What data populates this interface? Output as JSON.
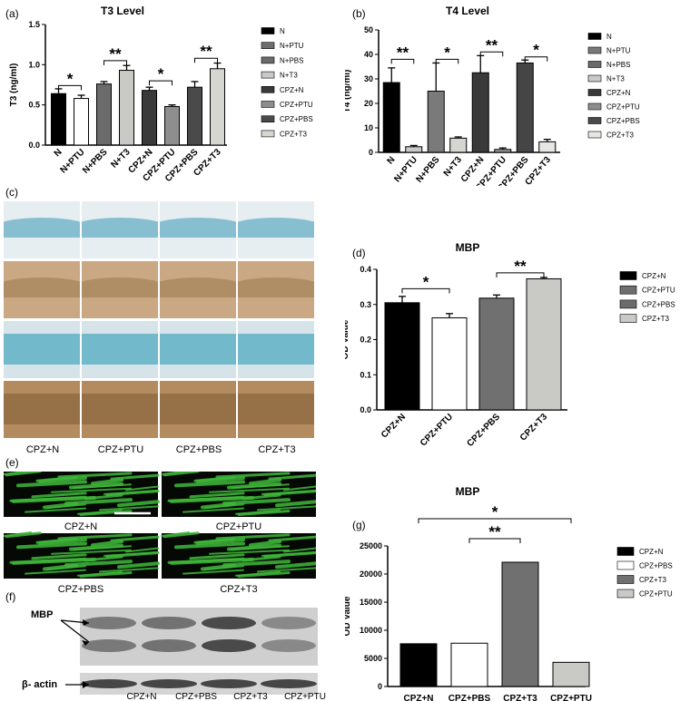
{
  "panels": {
    "a": "(a)",
    "b": "(b)",
    "c": "(c)",
    "d": "(d)",
    "e": "(e)",
    "f": "(f)",
    "g": "(g)"
  },
  "chart_data": [
    {
      "id": "a",
      "type": "bar",
      "title": "T3 Level",
      "ylabel": "T3 (ng/ml)",
      "ylim": [
        0,
        1.5
      ],
      "yticks": [
        "0.0",
        "0.5",
        "1.0",
        "1.5"
      ],
      "categories": [
        "N",
        "N+PTU",
        "N+PBS",
        "N+T3",
        "CPZ+N",
        "CPZ+PTU",
        "CPZ+PBS",
        "CPZ+T3"
      ],
      "values": [
        0.64,
        0.58,
        0.76,
        0.93,
        0.68,
        0.48,
        0.72,
        0.95
      ],
      "errors": [
        0.06,
        0.04,
        0.03,
        0.06,
        0.04,
        0.02,
        0.07,
        0.07
      ],
      "colors": [
        "#000000",
        "#ffffff",
        "#6b6b6b",
        "#c9c9c6",
        "#3a3a3a",
        "#8e8e8e",
        "#4a4a4a",
        "#d6d6d0"
      ],
      "legend": [
        "N",
        "N+PTU",
        "N+PBS",
        "N+T3",
        "CPZ+N",
        "CPZ+PTU",
        "CPZ+PBS",
        "CPZ+T3"
      ],
      "legend_colors": [
        "#000000",
        "#6e6e6e",
        "#6b6b6b",
        "#c9c9c6",
        "#3a3a3a",
        "#8e8e8e",
        "#4a4a4a",
        "#d6d6d0"
      ],
      "significance": [
        {
          "between": [
            0,
            1
          ],
          "label": "*",
          "y": 0.74
        },
        {
          "between": [
            2,
            3
          ],
          "label": "**",
          "y": 1.05
        },
        {
          "between": [
            4,
            5
          ],
          "label": "*",
          "y": 0.8
        },
        {
          "between": [
            6,
            7
          ],
          "label": "**",
          "y": 1.08
        }
      ]
    },
    {
      "id": "b",
      "type": "bar",
      "title": "T4 Level",
      "ylabel": "T4 (ng/ml)",
      "ylim": [
        0,
        50
      ],
      "yticks": [
        "0",
        "10",
        "20",
        "30",
        "40",
        "50"
      ],
      "categories": [
        "N",
        "N+PTU",
        "N+PBS",
        "N+T3",
        "CPZ+N",
        "CPZ+PTU",
        "CPZ+PBS",
        "CPZ+T3"
      ],
      "values": [
        28.5,
        2.3,
        25,
        5.8,
        32.5,
        1.2,
        36.5,
        4.3
      ],
      "errors": [
        6,
        0.5,
        11.5,
        0.5,
        7,
        0.6,
        1.2,
        1
      ],
      "colors": [
        "#000000",
        "#c9c9c6",
        "#7a7a7a",
        "#d6d6d0",
        "#3a3a3a",
        "#9a9a9a",
        "#454545",
        "#e6e6e2"
      ],
      "legend": [
        "N",
        "N+PTU",
        "N+PBS",
        "N+T3",
        "CPZ+N",
        "CPZ+PTU",
        "CPZ+PBS",
        "CPZ+T3"
      ],
      "legend_colors": [
        "#000000",
        "#7a7a7a",
        "#6b6b6b",
        "#c9c9c6",
        "#3a3a3a",
        "#8e8e8e",
        "#4a4a4a",
        "#e6e6e2"
      ],
      "significance": [
        {
          "between": [
            0,
            1
          ],
          "label": "**",
          "y": 38
        },
        {
          "between": [
            2,
            3
          ],
          "label": "*",
          "y": 38
        },
        {
          "between": [
            4,
            5
          ],
          "label": "**",
          "y": 41
        },
        {
          "between": [
            6,
            7
          ],
          "label": "*",
          "y": 39
        }
      ]
    },
    {
      "id": "d",
      "type": "bar",
      "title": "MBP",
      "ylabel": "OD Value",
      "ylim": [
        0,
        0.4
      ],
      "yticks": [
        "0.0",
        "0.1",
        "0.2",
        "0.3",
        "0.4"
      ],
      "categories": [
        "CPZ+N",
        "CPZ+PTU",
        "CPZ+PBS",
        "CPZ+T3"
      ],
      "values": [
        0.305,
        0.262,
        0.318,
        0.373
      ],
      "errors": [
        0.018,
        0.012,
        0.009,
        0.004
      ],
      "colors": [
        "#000000",
        "#ffffff",
        "#707070",
        "#c9c9c6"
      ],
      "legend": [
        "CPZ+N",
        "CPZ+PTU",
        "CPZ+PBS",
        "CPZ+T3"
      ],
      "legend_colors": [
        "#000000",
        "#6e6e6e",
        "#6b6b6b",
        "#c9c9c6"
      ],
      "significance": [
        {
          "between": [
            0,
            1
          ],
          "label": "*",
          "y": 0.345
        },
        {
          "between": [
            2,
            3
          ],
          "label": "**",
          "y": 0.39
        }
      ]
    },
    {
      "id": "g",
      "type": "bar",
      "title": "MBP",
      "ylabel": "OD Value",
      "ylim": [
        0,
        25000
      ],
      "yticks": [
        "0",
        "5000",
        "10000",
        "15000",
        "20000",
        "25000"
      ],
      "categories": [
        "CPZ+N",
        "CPZ+PBS",
        "CPZ+T3",
        "CPZ+PTU"
      ],
      "values": [
        7600,
        7700,
        22100,
        4300
      ],
      "colors": [
        "#000000",
        "#ffffff",
        "#707070",
        "#c9c9c6"
      ],
      "legend": [
        "CPZ+N",
        "CPZ+PBS",
        "CPZ+T3",
        "CPZ+PTU"
      ],
      "legend_colors": [
        "#000000",
        "#ffffff",
        "#707070",
        "#c9c9c6"
      ],
      "significance": [
        {
          "between": [
            1,
            2
          ],
          "label": "**",
          "y": 24400
        },
        {
          "between": [
            0,
            3
          ],
          "label": "*",
          "y": 28800
        }
      ]
    }
  ],
  "micrographs_c": {
    "captions": [
      "CPZ+N",
      "CPZ+PTU",
      "CPZ+PBS",
      "CPZ+T3"
    ]
  },
  "fluorescence_e": {
    "captions": [
      "CPZ+N",
      "CPZ+PTU",
      "CPZ+PBS",
      "CPZ+T3"
    ]
  },
  "western_f": {
    "labels": {
      "mbp": "MBP",
      "actin": "β- actin"
    },
    "lanes": [
      "CPZ+N",
      "CPZ+PBS",
      "CPZ+T3",
      "CPZ+PTU"
    ]
  }
}
